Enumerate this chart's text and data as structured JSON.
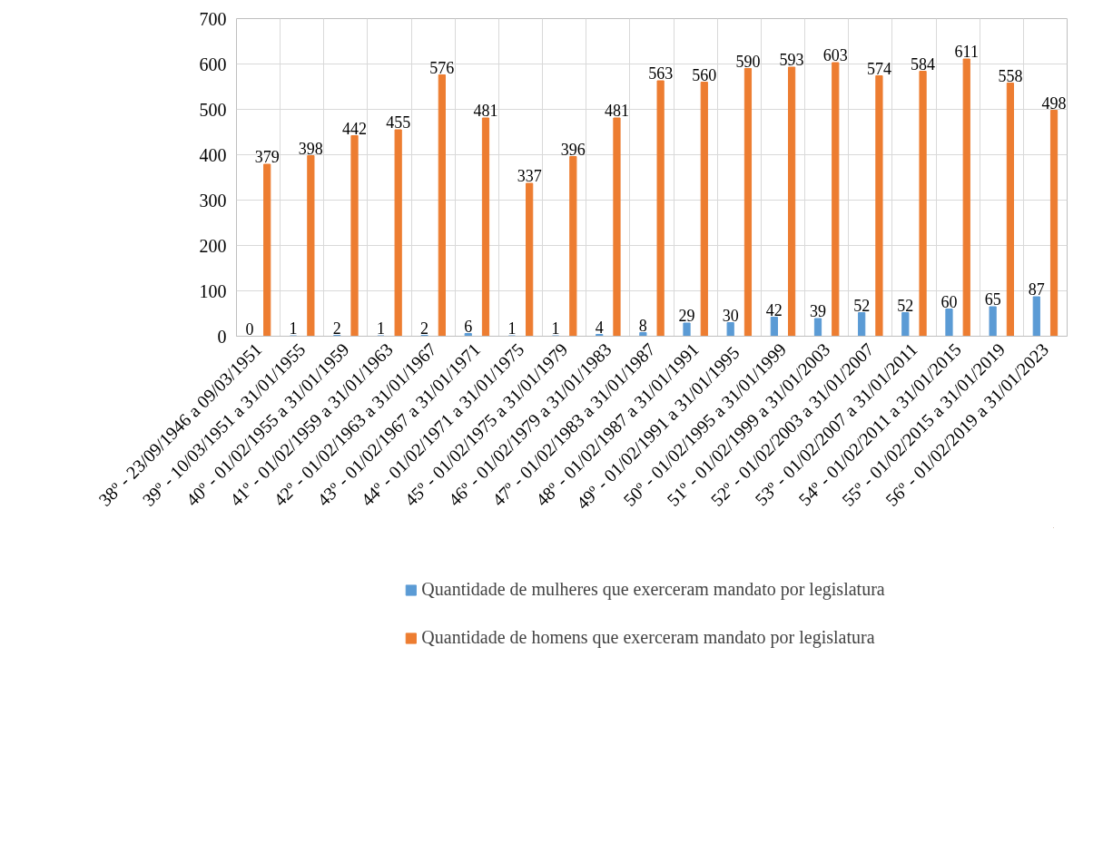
{
  "chart_data": {
    "type": "bar",
    "categories": [
      "38º - 23/09/1946 a 09/03/1951",
      "39º - 10/03/1951 a 31/01/1955",
      "40º - 01/02/1955 a 31/01/1959",
      "41º - 01/02/1959 a 31/01/1963",
      "42º - 01/02/1963 a 31/01/1967",
      "43º - 01/02/1967 a 31/01/1971",
      "44º - 01/02/1971 a 31/01/1975",
      "45º - 01/02/1975 a 31/01/1979",
      "46º - 01/02/1979 a 31/01/1983",
      "47º - 01/02/1983 a 31/01/1987",
      "48º - 01/02/1987 a 31/01/1991",
      "49º - 01/02/1991 a  31/01/1995",
      "50º - 01/02/1995 a 31/01/1999",
      "51º - 01/02/1999 a 31/01/2003",
      "52º - 01/02/2003 a 31/01/2007",
      "53º - 01/02/2007 a 31/01/2011",
      "54º - 01/02/2011 a 31/01/2015",
      "55º - 01/02/2015 a 31/01/2019",
      "56º - 01/02/2019 a 31/01/2023"
    ],
    "series": [
      {
        "name": "Quantidade de mulheres que exerceram mandato por legislatura",
        "color": "#5b9bd5",
        "values": [
          0,
          1,
          2,
          1,
          2,
          6,
          1,
          1,
          4,
          8,
          29,
          30,
          42,
          39,
          52,
          52,
          60,
          65,
          87
        ]
      },
      {
        "name": "Quantidade de homens que exerceram mandato por legislatura",
        "color": "#ed7d31",
        "values": [
          379,
          398,
          442,
          455,
          576,
          481,
          337,
          396,
          481,
          563,
          560,
          590,
          593,
          603,
          574,
          584,
          611,
          558,
          498
        ]
      }
    ],
    "ylim": [
      0,
      700
    ],
    "yticks": [
      0,
      100,
      200,
      300,
      400,
      500,
      600,
      700
    ],
    "grid": true,
    "legend": "bottom",
    "data_labels": true
  }
}
